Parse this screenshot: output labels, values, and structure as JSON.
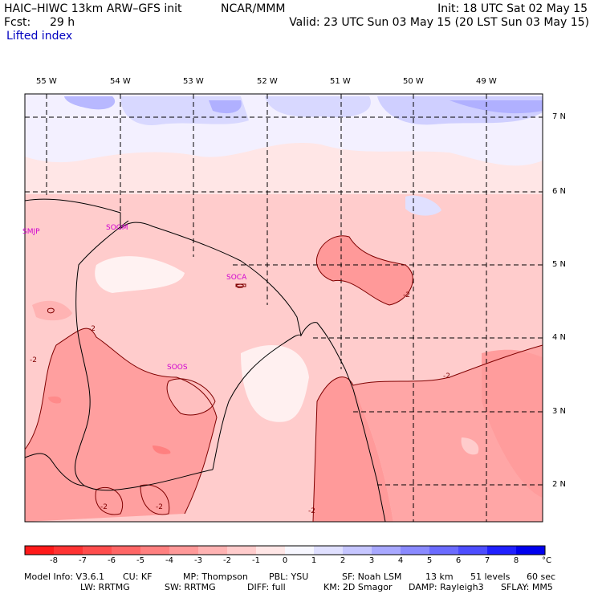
{
  "header": {
    "model": "HAIC–HIWC 13km ARW–GFS init",
    "center": "NCAR/MMM",
    "init": "Init: 18 UTC Sat 02 May 15",
    "fcst_label": "Fcst:",
    "fcst_value": "29 h",
    "valid": "Valid: 23 UTC Sun 03 May 15 (20 LST Sun 03 May 15)",
    "field": "Lifted index"
  },
  "longitudes": [
    "55 W",
    "54 W",
    "53 W",
    "52 W",
    "51 W",
    "50 W",
    "49 W"
  ],
  "latitudes": [
    "7 N",
    "6 N",
    "5 N",
    "4 N",
    "3 N",
    "2 N"
  ],
  "stations": [
    "SMJP",
    "SOGM",
    "SOCA",
    "SOOS"
  ],
  "contour_labels": [
    "-2",
    "-2",
    "-2",
    "-2",
    "-2",
    "-2",
    "-2",
    "-2",
    "-2",
    "-2"
  ],
  "colorbar": {
    "ticks": [
      "-8",
      "-7",
      "-6",
      "-5",
      "-4",
      "-3",
      "-2",
      "-1",
      "0",
      "1",
      "2",
      "3",
      "4",
      "5",
      "6",
      "7",
      "8"
    ],
    "unit": "°C",
    "colors": [
      "#ff1a1a",
      "#ff3333",
      "#ff4d4d",
      "#ff6666",
      "#ff8080",
      "#ff9999",
      "#ffb3b3",
      "#ffcccc",
      "#ffe6e6",
      "#f7f7ff",
      "#e0e0ff",
      "#c6c6ff",
      "#a8a8ff",
      "#8a8aff",
      "#6b6bff",
      "#4d4dff",
      "#2020ff",
      "#0000ee"
    ]
  },
  "footer": {
    "line1": [
      "Model Info: V3.6.1",
      "CU: KF",
      "MP: Thompson",
      "PBL: YSU",
      "SF: Noah LSM",
      "13 km",
      "51 levels",
      "60 sec"
    ],
    "line2": [
      "LW: RRTMG",
      "SW: RRTMG",
      "DIFF: full",
      "KM: 2D Smagor",
      "DAMP: Rayleigh3",
      "SFLAY: MM5"
    ]
  },
  "colors": {
    "station": "#d000d0",
    "contour": "#800000",
    "field_label": "#0000c0"
  }
}
